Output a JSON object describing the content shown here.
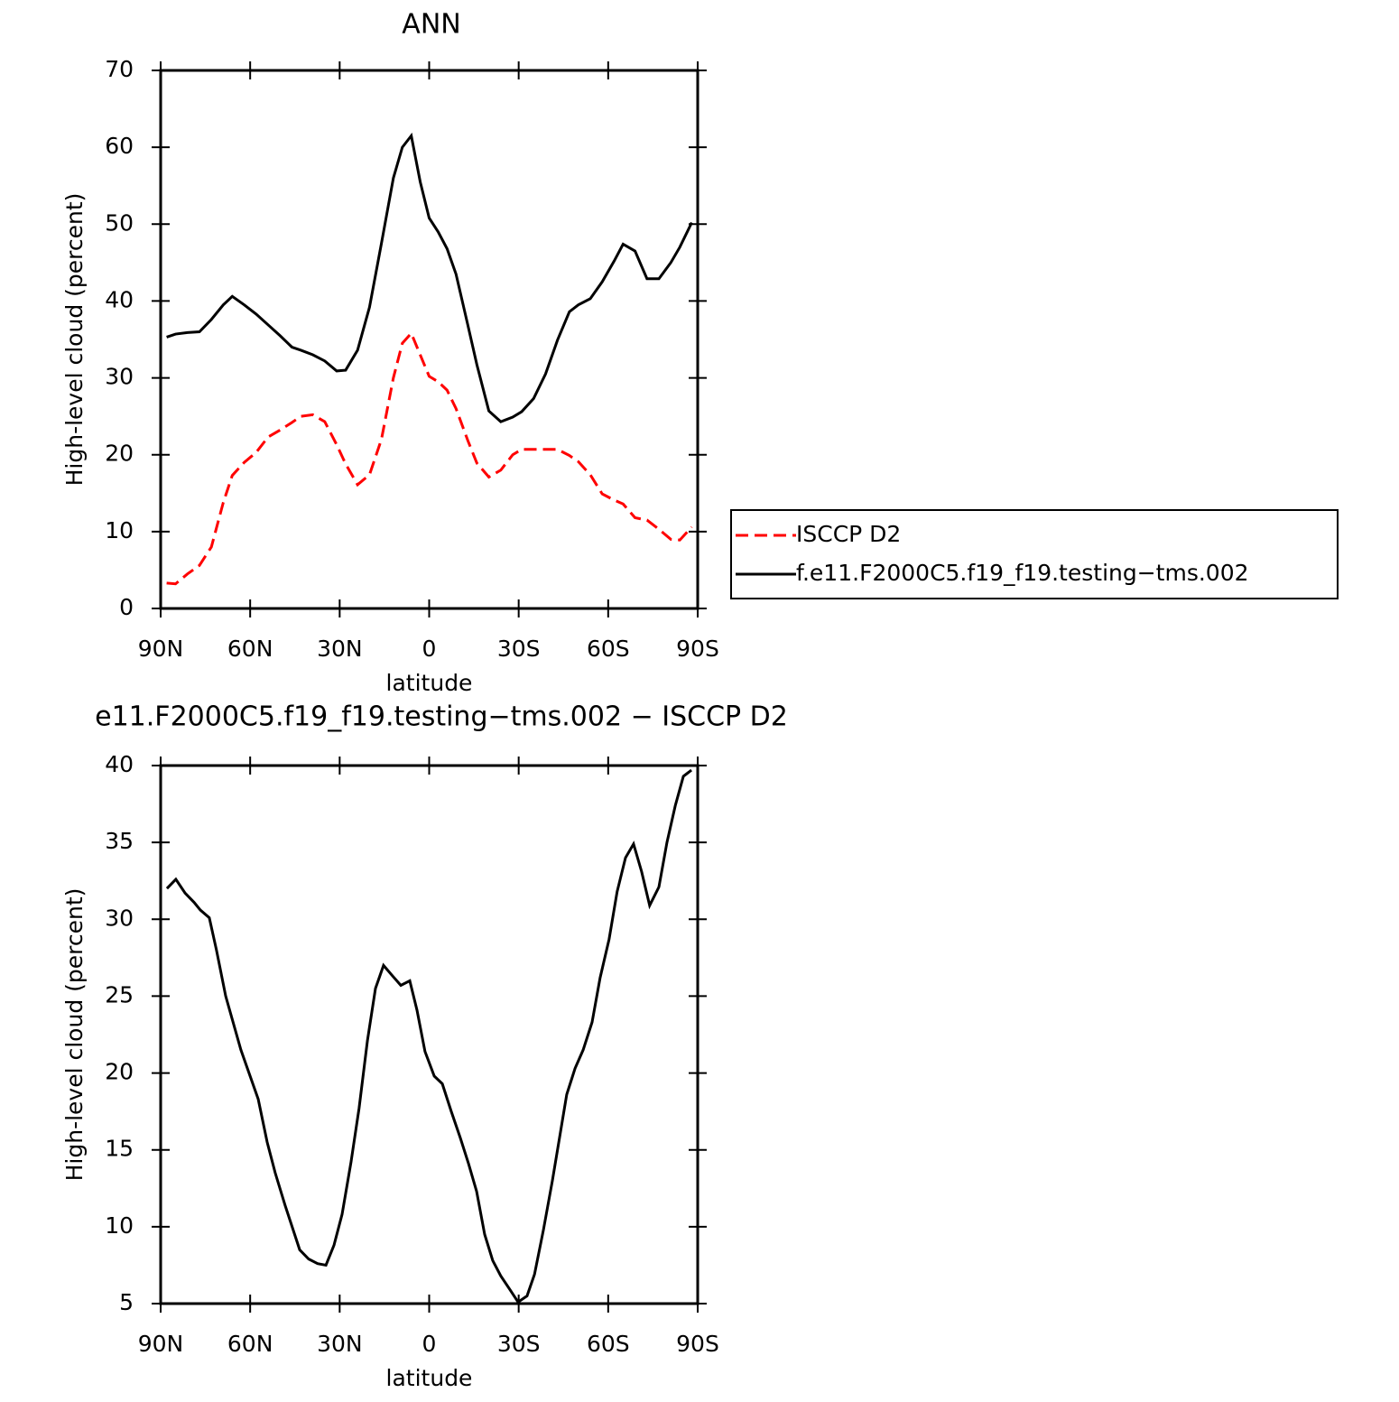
{
  "chart_data": [
    {
      "type": "line",
      "title": "ANN",
      "x_label": "latitude",
      "y_label": "High-level cloud (percent)",
      "x": [
        88,
        85,
        81,
        77,
        73,
        69,
        66,
        62,
        58,
        54,
        50,
        46,
        43,
        39,
        35,
        31,
        28,
        24,
        20,
        16,
        12,
        9,
        6,
        3,
        0,
        -3,
        -6,
        -9,
        -13,
        -16,
        -20,
        -24,
        -28,
        -31,
        -35,
        -39,
        -43,
        -47,
        -50,
        -54,
        -58,
        -62,
        -65,
        -69,
        -73,
        -77,
        -81,
        -84,
        -88
      ],
      "series": [
        {
          "name": "ISCCP D2",
          "color": "#ff0000",
          "dashed": true,
          "values": [
            3.3,
            3.2,
            4.5,
            5.6,
            8.0,
            13.8,
            17.3,
            19.0,
            20.3,
            22.3,
            23.2,
            24.2,
            25.0,
            25.2,
            24.3,
            21.3,
            18.8,
            16.1,
            17.4,
            22.0,
            30.0,
            34.5,
            35.8,
            33.0,
            30.2,
            29.5,
            28.4,
            26.0,
            21.8,
            18.9,
            17.1,
            18.0,
            20.0,
            20.7,
            20.7,
            20.7,
            20.7,
            19.9,
            19.1,
            17.4,
            14.9,
            14.1,
            13.6,
            11.8,
            11.5,
            10.3,
            9.0,
            8.9,
            10.6
          ]
        },
        {
          "name": "f.e11.F2000C5.f19_f19.testing−tms.002",
          "color": "#000000",
          "dashed": false,
          "values": [
            35.3,
            35.7,
            35.9,
            36.0,
            37.6,
            39.5,
            40.6,
            39.5,
            38.3,
            36.9,
            35.5,
            34.0,
            33.6,
            33.0,
            32.2,
            30.9,
            31.0,
            33.6,
            39.2,
            47.5,
            56.0,
            60.0,
            61.5,
            55.5,
            50.8,
            49.0,
            46.8,
            43.5,
            36.8,
            31.7,
            25.7,
            24.3,
            24.9,
            25.6,
            27.3,
            30.5,
            34.9,
            38.6,
            39.5,
            40.3,
            42.5,
            45.2,
            47.4,
            46.5,
            42.9,
            42.9,
            45.0,
            47.0,
            50.2
          ]
        }
      ],
      "xlim": [
        90,
        -90
      ],
      "xticks": [
        {
          "value": 90,
          "label": "90N"
        },
        {
          "value": 60,
          "label": "60N"
        },
        {
          "value": 30,
          "label": "30N"
        },
        0,
        {
          "value": -30,
          "label": "30S"
        },
        {
          "value": -60,
          "label": "60S"
        },
        {
          "value": -90,
          "label": "90S"
        }
      ],
      "ylim": [
        0,
        70
      ],
      "yticks": [
        0,
        10,
        20,
        30,
        40,
        50,
        60,
        70
      ],
      "legend": "right"
    },
    {
      "type": "line",
      "title": "e11.F2000C5.f19_f19.testing−tms.002 − ISCCP D2",
      "x_label": "latitude",
      "y_label": "High-level cloud (percent)",
      "x": [
        87.9,
        84.9,
        81.8,
        78.8,
        76.7,
        73.7,
        71.3,
        68.2,
        63.1,
        57.3,
        54.3,
        51.6,
        48.3,
        43.4,
        40.4,
        37.4,
        34.6,
        31.9,
        29.2,
        26.2,
        23.5,
        20.7,
        18.0,
        15.3,
        12.2,
        9.5,
        6.5,
        4.1,
        1.4,
        -1.7,
        -4.4,
        -7.4,
        -10.4,
        -13.2,
        -15.9,
        -18.6,
        -21.3,
        -24.0,
        -27.1,
        -29.8,
        -32.8,
        -35.3,
        -38.3,
        -41.3,
        -43.7,
        -46.1,
        -48.9,
        -51.6,
        -54.6,
        -57.3,
        -60.3,
        -63.0,
        -65.8,
        -68.5,
        -71.2,
        -73.9,
        -77.0,
        -79.7,
        -82.5,
        -85.2,
        -87.9
      ],
      "values": [
        32.0,
        32.6,
        31.7,
        31.1,
        30.6,
        30.1,
        28.0,
        25.0,
        21.5,
        18.3,
        15.5,
        13.5,
        11.4,
        8.5,
        7.9,
        7.6,
        7.5,
        8.8,
        10.8,
        14.2,
        17.7,
        22.1,
        25.5,
        27.0,
        26.3,
        25.7,
        26.0,
        24.1,
        21.4,
        19.8,
        19.3,
        17.5,
        15.8,
        14.1,
        12.3,
        9.5,
        7.8,
        6.8,
        5.9,
        5.1,
        5.5,
        6.9,
        9.8,
        13.0,
        15.8,
        18.6,
        20.3,
        21.5,
        23.3,
        26.2,
        28.7,
        31.8,
        34.0,
        34.9,
        33.1,
        30.9,
        32.1,
        35.0,
        37.4,
        39.3,
        39.7
      ],
      "color": "#000000",
      "xlim": [
        90,
        -90
      ],
      "xticks": [
        {
          "value": 90,
          "label": "90N"
        },
        {
          "value": 60,
          "label": "60N"
        },
        {
          "value": 30,
          "label": "30N"
        },
        0,
        {
          "value": -30,
          "label": "30S"
        },
        {
          "value": -60,
          "label": "60S"
        },
        {
          "value": -90,
          "label": "90S"
        }
      ],
      "ylim": [
        5,
        40
      ],
      "yticks": [
        5,
        10,
        15,
        20,
        25,
        30,
        35,
        40
      ]
    }
  ]
}
